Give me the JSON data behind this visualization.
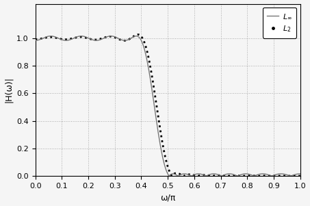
{
  "title": "",
  "xlabel": "ω/π",
  "ylabel": "|H(ω)|",
  "xlim": [
    0,
    1
  ],
  "ylim": [
    0,
    1.25
  ],
  "yticks": [
    0,
    0.2,
    0.4,
    0.6,
    0.8,
    1.0
  ],
  "xticks": [
    0,
    0.1,
    0.2,
    0.3,
    0.4,
    0.5,
    0.6,
    0.7,
    0.8,
    0.9,
    1.0
  ],
  "linf_color": "#777777",
  "l2_color": "#000000",
  "grid_color": "#aaaaaa",
  "bg_color": "#f5f5f5",
  "linf_linewidth": 1.0,
  "l2_linewidth": 2.0,
  "figsize": [
    4.53,
    3.01
  ],
  "dpi": 100
}
